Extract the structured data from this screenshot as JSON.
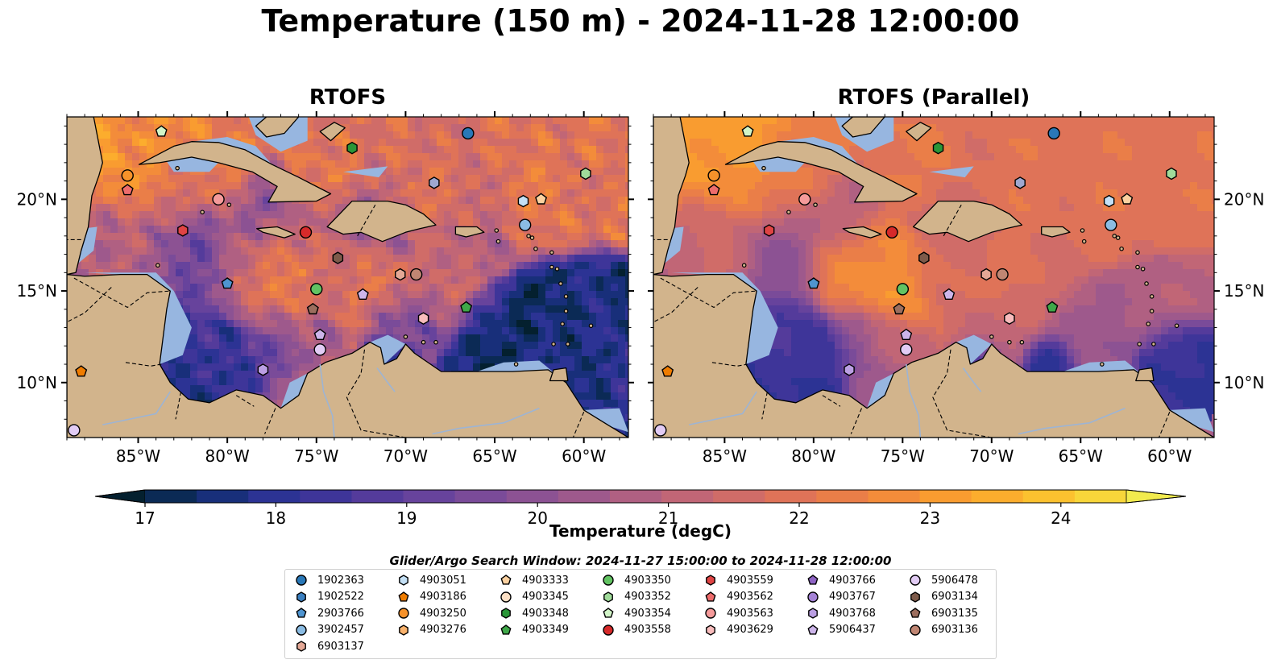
{
  "figure": {
    "title": "Temperature (150 m) - 2024-11-28 12:00:00",
    "colorbar_label": "Temperature (degC)",
    "legend_title": "Glider/Argo Search Window: 2024-11-27 15:00:00 to 2024-11-28 12:00:00"
  },
  "chart_data": {
    "type": "heatmap",
    "panels": [
      {
        "title": "RTOFS"
      },
      {
        "title": "RTOFS (Parallel)"
      }
    ],
    "xlabel": "",
    "ylabel": "",
    "xlim": [
      -89,
      -57.5
    ],
    "ylim": [
      7,
      24.5
    ],
    "x_ticks": [
      "85°W",
      "80°W",
      "75°W",
      "70°W",
      "65°W",
      "60°W"
    ],
    "x_tick_values": [
      -85,
      -80,
      -75,
      -70,
      -65,
      -60
    ],
    "y_ticks": [
      "20°N",
      "15°N",
      "10°N"
    ],
    "y_tick_values": [
      20,
      15,
      10
    ],
    "colorbar": {
      "ticks": [
        "17",
        "18",
        "19",
        "20",
        "21",
        "22",
        "23",
        "24"
      ],
      "range": [
        16.5,
        24.5
      ],
      "step": 0.5,
      "colors": [
        "#04202f",
        "#0b2a55",
        "#182f7a",
        "#2c3394",
        "#3e3599",
        "#543b9b",
        "#67439c",
        "#7a4b99",
        "#8c5293",
        "#9e598c",
        "#b06082",
        "#c16676",
        "#d06c68",
        "#df7358",
        "#ea7e48",
        "#f38c3a",
        "#f99c30",
        "#fcad2d",
        "#fcc12f",
        "#f8d63a",
        "#f2eb4e"
      ],
      "extend": "both"
    },
    "series": [
      {
        "name": "1902363",
        "marker": "circle",
        "color": "#2978b8",
        "points": [
          [
            -66.5,
            23.6
          ]
        ]
      },
      {
        "name": "1902522",
        "marker": "hexagon",
        "color": "#3a7fc0",
        "points": []
      },
      {
        "name": "2903766",
        "marker": "pentagon",
        "color": "#4f95d1",
        "points": [
          [
            -80.0,
            15.4
          ]
        ]
      },
      {
        "name": "3902457",
        "marker": "circle",
        "color": "#8bbce3",
        "points": [
          [
            -63.3,
            18.6
          ]
        ]
      },
      {
        "name": "4903051",
        "marker": "hexagon",
        "color": "#c4e0f5",
        "points": [
          [
            -63.4,
            19.9
          ]
        ]
      },
      {
        "name": "4903186",
        "marker": "pentagon",
        "color": "#ef7c00",
        "points": [
          [
            -88.2,
            10.6
          ]
        ]
      },
      {
        "name": "4903250",
        "marker": "circle",
        "color": "#f7922a",
        "points": [
          [
            -85.6,
            21.3
          ]
        ]
      },
      {
        "name": "4903276",
        "marker": "hexagon",
        "color": "#f9b26c",
        "points": []
      },
      {
        "name": "4903333",
        "marker": "pentagon",
        "color": "#fcd1a0",
        "points": [
          [
            -62.4,
            20.0
          ]
        ]
      },
      {
        "name": "4903345",
        "marker": "circle",
        "color": "#fde0c5",
        "points": []
      },
      {
        "name": "4903348",
        "marker": "hexagon",
        "color": "#2a9638",
        "points": [
          [
            -73.0,
            22.8
          ]
        ]
      },
      {
        "name": "4903349",
        "marker": "pentagon",
        "color": "#3fa849",
        "points": [
          [
            -66.6,
            14.1
          ]
        ]
      },
      {
        "name": "4903350",
        "marker": "circle",
        "color": "#62c362",
        "points": [
          [
            -75.0,
            15.1
          ]
        ]
      },
      {
        "name": "4903352",
        "marker": "hexagon",
        "color": "#a0db9a",
        "points": [
          [
            -59.9,
            21.4
          ]
        ]
      },
      {
        "name": "4903354",
        "marker": "pentagon",
        "color": "#d2f5c8",
        "points": [
          [
            -83.7,
            23.7
          ]
        ]
      },
      {
        "name": "4903558",
        "marker": "circle",
        "color": "#d62a2a",
        "points": [
          [
            -75.6,
            18.2
          ]
        ]
      },
      {
        "name": "4903559",
        "marker": "hexagon",
        "color": "#e04444",
        "points": [
          [
            -82.5,
            18.3
          ]
        ]
      },
      {
        "name": "4903562",
        "marker": "pentagon",
        "color": "#ee6c6c",
        "points": [
          [
            -85.6,
            20.5
          ]
        ]
      },
      {
        "name": "4903563",
        "marker": "circle",
        "color": "#f59a9a",
        "points": [
          [
            -80.5,
            20.0
          ]
        ]
      },
      {
        "name": "4903629",
        "marker": "hexagon",
        "color": "#f8bcbc",
        "points": [
          [
            -69.0,
            13.5
          ]
        ]
      },
      {
        "name": "4903766",
        "marker": "pentagon",
        "color": "#8e63c4",
        "points": []
      },
      {
        "name": "4903767",
        "marker": "circle",
        "color": "#a583d6",
        "points": []
      },
      {
        "name": "4903768",
        "marker": "hexagon",
        "color": "#bb9fe3",
        "points": [
          [
            -78.0,
            10.7
          ]
        ]
      },
      {
        "name": "5906437",
        "marker": "pentagon",
        "color": "#cdb5ea",
        "points": [
          [
            -72.4,
            14.8
          ],
          [
            -74.8,
            12.6
          ]
        ]
      },
      {
        "name": "5906478",
        "marker": "circle",
        "color": "#e2ccf5",
        "points": [
          [
            -88.6,
            7.4
          ],
          [
            -74.8,
            11.8
          ]
        ]
      },
      {
        "name": "6903134",
        "marker": "hexagon",
        "color": "#7d5a4a",
        "points": [
          [
            -73.8,
            16.8
          ]
        ]
      },
      {
        "name": "6903135",
        "marker": "pentagon",
        "color": "#9c6e5e",
        "points": [
          [
            -75.2,
            14.0
          ]
        ]
      },
      {
        "name": "6903136",
        "marker": "circle",
        "color": "#c08673",
        "points": [
          [
            -69.4,
            15.9
          ]
        ]
      },
      {
        "name": "6903137",
        "marker": "hexagon",
        "color": "#e4a896",
        "points": [
          [
            -70.3,
            15.9
          ]
        ]
      },
      {
        "name": "",
        "marker": "hexagon",
        "color": "#9fa7cf",
        "points": [
          [
            -68.4,
            20.9
          ]
        ]
      }
    ]
  }
}
